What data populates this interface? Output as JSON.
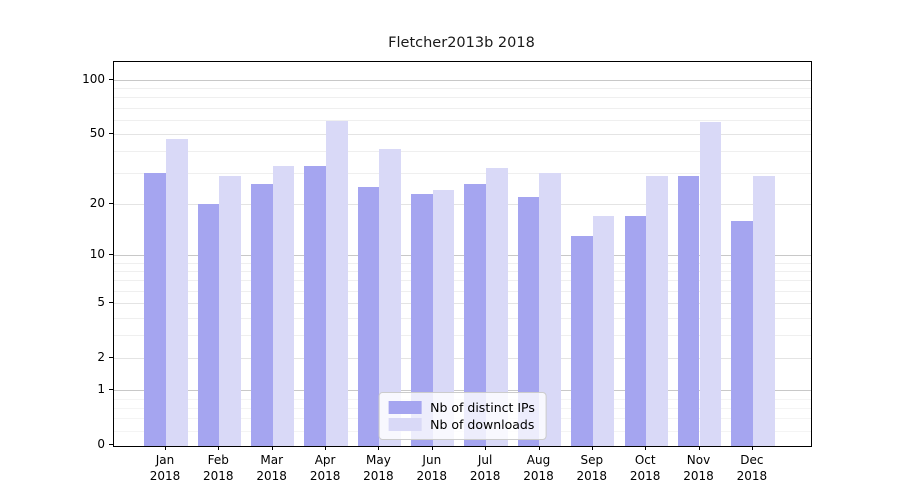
{
  "title": "Fletcher2013b 2018",
  "chart_data": {
    "type": "bar",
    "title": "Fletcher2013b 2018",
    "y_scale": "log1p",
    "ylim": [
      0,
      127
    ],
    "grid": true,
    "legend_position": "lower center",
    "categories": [
      "Jan 2018",
      "Feb 2018",
      "Mar 2018",
      "Apr 2018",
      "May 2018",
      "Jun 2018",
      "Jul 2018",
      "Aug 2018",
      "Sep 2018",
      "Oct 2018",
      "Nov 2018",
      "Dec 2018"
    ],
    "series": [
      {
        "name": "Nb of distinct IPs",
        "color": "#a5a5f0",
        "values": [
          30,
          20,
          26,
          33,
          25,
          23,
          26,
          22,
          13,
          17,
          29,
          16
        ]
      },
      {
        "name": "Nb of downloads",
        "color": "#d9d9f7",
        "values": [
          47,
          29,
          33,
          59,
          41,
          24,
          32,
          30,
          17,
          29,
          58,
          29
        ]
      }
    ],
    "y_major_ticks": [
      0,
      1,
      2,
      5,
      10,
      20,
      50,
      100
    ],
    "y_minor_ticks": [
      0.2,
      0.4,
      0.6,
      0.8,
      3,
      4,
      6,
      7,
      8,
      9,
      30,
      40,
      60,
      70,
      80,
      90
    ],
    "xlabel": "",
    "ylabel": ""
  },
  "colors": {
    "background": "#ffffff",
    "axis": "#000000",
    "grid_decade": "#c8c8c8",
    "grid_major": "#e4e4e4",
    "grid_minor": "#efefef",
    "grid_sub1": "#f4f4f4",
    "legend_border": "#cccccc",
    "legend_bg": "rgba(255,255,255,0.8)",
    "text": "#000000"
  }
}
